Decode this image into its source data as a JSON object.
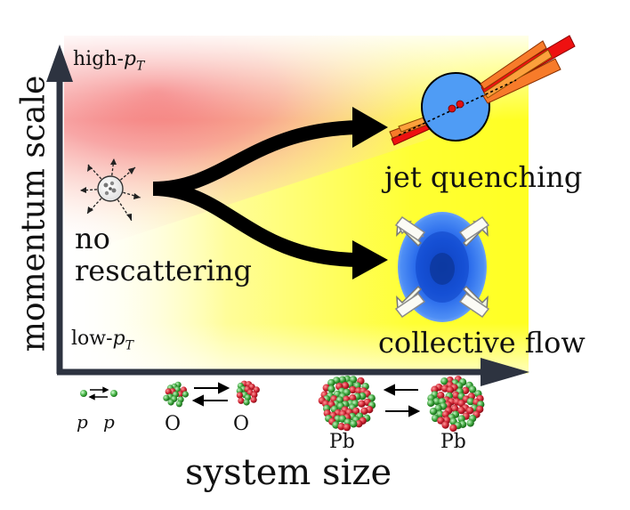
{
  "axes": {
    "y_label": "momentum scale",
    "x_label": "system size",
    "y_high": {
      "prefix": "high-",
      "symbol": "p",
      "subscript": "T"
    },
    "y_low": {
      "prefix": "low-",
      "symbol": "p",
      "subscript": "T"
    }
  },
  "regions": {
    "start": {
      "line1": "no",
      "line2": "rescattering"
    },
    "upper": "jet quenching",
    "lower": "collective flow"
  },
  "collisions": [
    {
      "left": "p",
      "right": "p"
    },
    {
      "left": "O",
      "right": "O"
    },
    {
      "left": "Pb",
      "right": "Pb"
    }
  ],
  "colors": {
    "arrow": "#000000",
    "axis": "#2d3340",
    "high_region": "#f26a6a",
    "low_region": "#ffff1a",
    "jet_blob": "#4f9cf5",
    "flow_blob": "#1b5fe8",
    "nucleon_red": "#c0202a",
    "nucleon_green": "#36a036",
    "jet_bars": "#ee1111"
  }
}
